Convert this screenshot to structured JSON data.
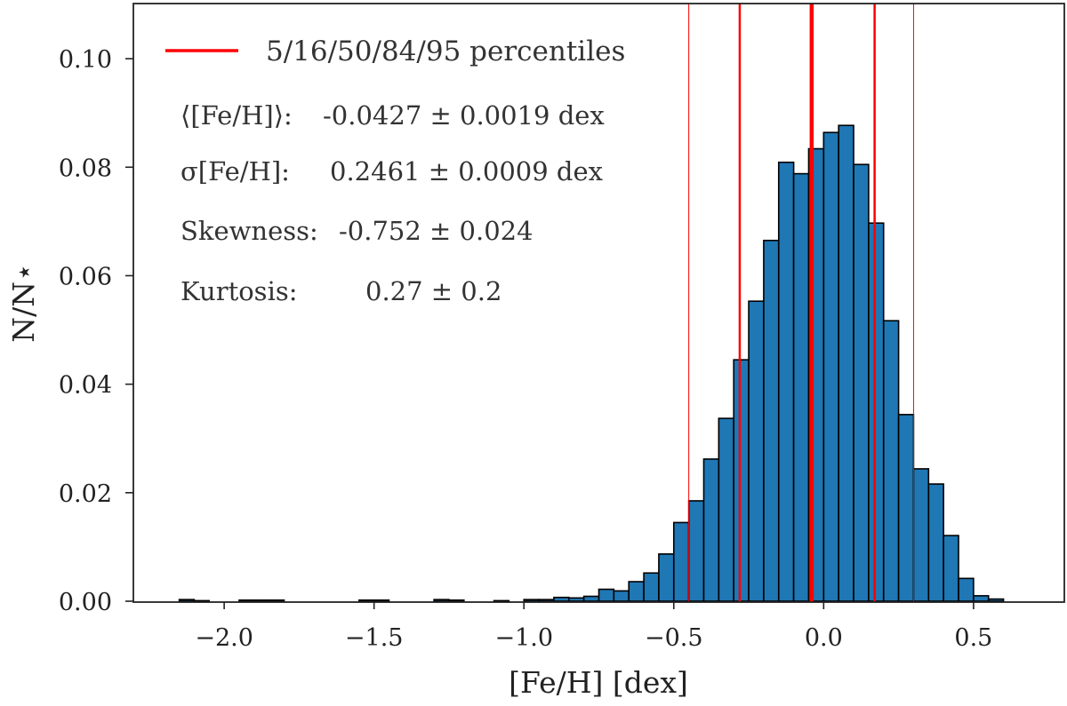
{
  "chart_data": {
    "type": "bar",
    "subtype": "histogram",
    "xlabel": "[Fe/H] [dex]",
    "ylabel": "N/N⋆",
    "xlim": [
      -2.3,
      0.8
    ],
    "ylim": [
      0.0,
      0.11
    ],
    "xticks": [
      -2.0,
      -1.5,
      -1.0,
      -0.5,
      0.0,
      0.5
    ],
    "xtick_labels": [
      "−2.0",
      "−1.5",
      "−1.0",
      "−0.5",
      "0.0",
      "0.5"
    ],
    "yticks": [
      0.0,
      0.02,
      0.04,
      0.06,
      0.08,
      0.1
    ],
    "ytick_labels": [
      "0.00",
      "0.02",
      "0.04",
      "0.06",
      "0.08",
      "0.10"
    ],
    "bar_color": "#1f77b4",
    "edge_color": "#000000",
    "bins": [
      {
        "left": -2.15,
        "right": -2.1,
        "value": 0.0003
      },
      {
        "left": -2.1,
        "right": -2.05,
        "value": 0.0001
      },
      {
        "left": -1.95,
        "right": -1.9,
        "value": 0.0002
      },
      {
        "left": -1.9,
        "right": -1.85,
        "value": 0.0002
      },
      {
        "left": -1.85,
        "right": -1.8,
        "value": 0.0002
      },
      {
        "left": -1.55,
        "right": -1.5,
        "value": 0.0002
      },
      {
        "left": -1.5,
        "right": -1.45,
        "value": 0.0002
      },
      {
        "left": -1.3,
        "right": -1.25,
        "value": 0.0003
      },
      {
        "left": -1.25,
        "right": -1.2,
        "value": 0.0002
      },
      {
        "left": -1.1,
        "right": -1.05,
        "value": 0.0001
      },
      {
        "left": -1.0,
        "right": -0.95,
        "value": 0.0003
      },
      {
        "left": -0.95,
        "right": -0.9,
        "value": 0.0003
      },
      {
        "left": -0.9,
        "right": -0.85,
        "value": 0.0007
      },
      {
        "left": -0.85,
        "right": -0.8,
        "value": 0.0006
      },
      {
        "left": -0.8,
        "right": -0.75,
        "value": 0.0009
      },
      {
        "left": -0.75,
        "right": -0.7,
        "value": 0.0022
      },
      {
        "left": -0.7,
        "right": -0.65,
        "value": 0.0019
      },
      {
        "left": -0.65,
        "right": -0.6,
        "value": 0.0036
      },
      {
        "left": -0.6,
        "right": -0.55,
        "value": 0.0052
      },
      {
        "left": -0.55,
        "right": -0.5,
        "value": 0.0087
      },
      {
        "left": -0.5,
        "right": -0.45,
        "value": 0.0145
      },
      {
        "left": -0.45,
        "right": -0.4,
        "value": 0.0185
      },
      {
        "left": -0.4,
        "right": -0.35,
        "value": 0.0262
      },
      {
        "left": -0.35,
        "right": -0.3,
        "value": 0.0337
      },
      {
        "left": -0.3,
        "right": -0.25,
        "value": 0.0445
      },
      {
        "left": -0.25,
        "right": -0.2,
        "value": 0.0553
      },
      {
        "left": -0.2,
        "right": -0.15,
        "value": 0.0665
      },
      {
        "left": -0.15,
        "right": -0.1,
        "value": 0.0809
      },
      {
        "left": -0.1,
        "right": -0.05,
        "value": 0.0788
      },
      {
        "left": -0.05,
        "right": 0.0,
        "value": 0.0834
      },
      {
        "left": 0.0,
        "right": 0.05,
        "value": 0.0864
      },
      {
        "left": 0.05,
        "right": 0.1,
        "value": 0.0877
      },
      {
        "left": 0.1,
        "right": 0.15,
        "value": 0.0805
      },
      {
        "left": 0.15,
        "right": 0.2,
        "value": 0.0697
      },
      {
        "left": 0.2,
        "right": 0.25,
        "value": 0.0517
      },
      {
        "left": 0.25,
        "right": 0.3,
        "value": 0.0344
      },
      {
        "left": 0.3,
        "right": 0.35,
        "value": 0.0244
      },
      {
        "left": 0.35,
        "right": 0.4,
        "value": 0.0216
      },
      {
        "left": 0.4,
        "right": 0.45,
        "value": 0.0121
      },
      {
        "left": 0.45,
        "right": 0.5,
        "value": 0.0042
      },
      {
        "left": 0.5,
        "right": 0.55,
        "value": 0.001
      },
      {
        "left": 0.55,
        "right": 0.6,
        "value": 0.0004
      }
    ],
    "percentiles": [
      {
        "p": 5,
        "value": -0.45
      },
      {
        "p": 16,
        "value": -0.28
      },
      {
        "p": 50,
        "value": -0.04
      },
      {
        "p": 84,
        "value": 0.17
      },
      {
        "p": 95,
        "value": 0.3
      }
    ],
    "percentile_color": "#ff0000",
    "legend": {
      "label": "5/16/50/84/95 percentiles",
      "placement": "top-left"
    },
    "annotations": [
      {
        "label": "⟨[Fe/H]⟩:",
        "value": "-0.0427 ± 0.0019 dex"
      },
      {
        "label": "σ[Fe/H]:",
        "value": "0.2461 ± 0.0009 dex"
      },
      {
        "label": "Skewness:",
        "value": "-0.752 ± 0.024"
      },
      {
        "label": "Kurtosis:",
        "value": "0.27 ± 0.2"
      }
    ]
  }
}
